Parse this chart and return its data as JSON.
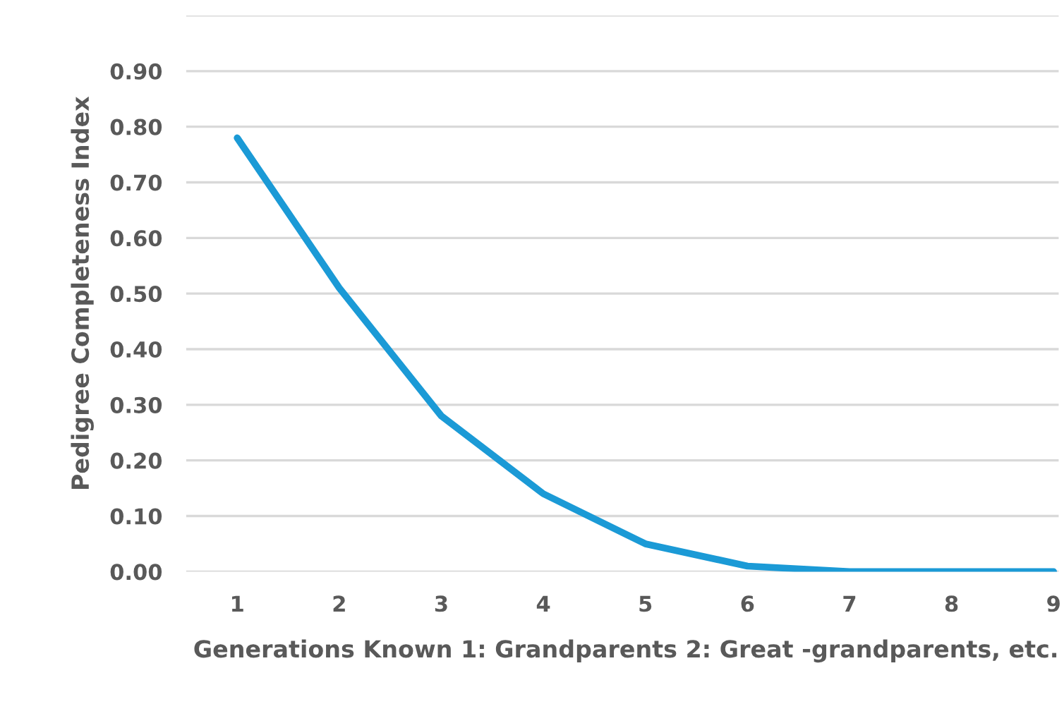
{
  "chart_data": {
    "type": "line",
    "xlabel": "Generations Known 1: Grandparents 2: Great -grandparents, etc.",
    "ylabel": "Pedigree Completeness Index",
    "categories": [
      "1",
      "2",
      "3",
      "4",
      "5",
      "6",
      "7",
      "8",
      "9"
    ],
    "series": [
      {
        "color": "#1b9ad6",
        "values": [
          0.78,
          0.51,
          0.28,
          0.14,
          0.05,
          0.01,
          0.0,
          0.0,
          0.0
        ]
      }
    ],
    "ylim": [
      0,
      1.0
    ],
    "yticks": [
      {
        "value": 0,
        "label": "0.00"
      },
      {
        "value": 0.1,
        "label": "0.10"
      },
      {
        "value": 0.2,
        "label": "0.20"
      },
      {
        "value": 0.3,
        "label": "0.30"
      },
      {
        "value": 0.4,
        "label": "0.40"
      },
      {
        "value": 0.5,
        "label": "0.50"
      },
      {
        "value": 0.6,
        "label": "0.60"
      },
      {
        "value": 0.7,
        "label": "0.70"
      },
      {
        "value": 0.8,
        "label": "0.80"
      },
      {
        "value": 0.9,
        "label": "0.90"
      },
      {
        "value": 1.0,
        "label": null
      }
    ],
    "grid": "y",
    "marker": "none",
    "line_style": "solid"
  }
}
